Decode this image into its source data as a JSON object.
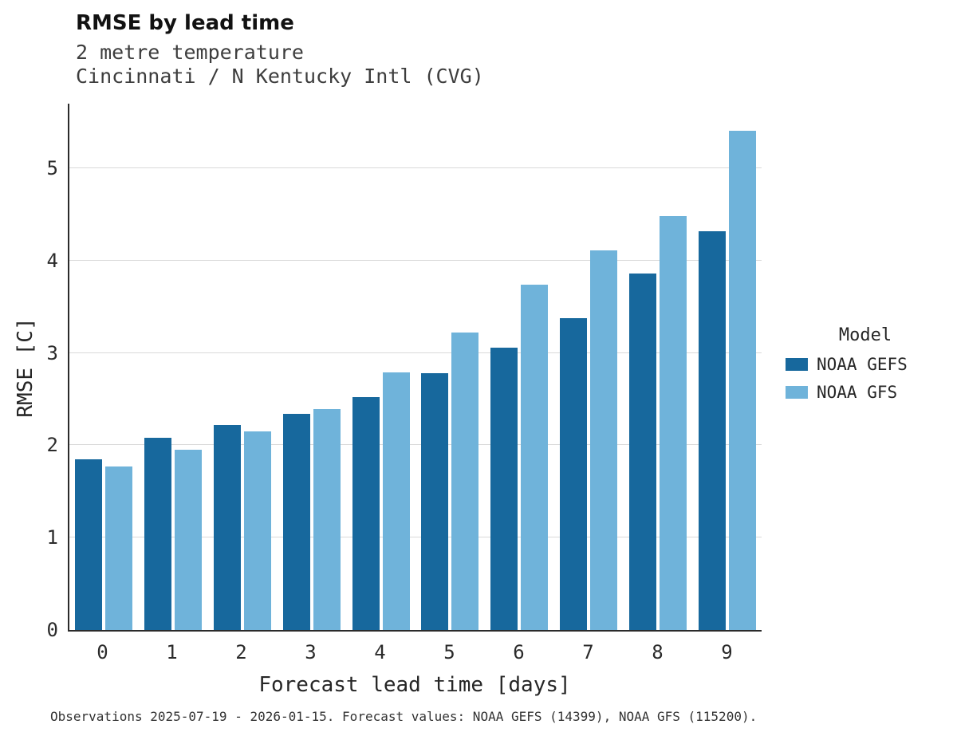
{
  "header": {
    "title": "RMSE by lead time",
    "subtitle_line1": "2 metre temperature",
    "subtitle_line2": "Cincinnati / N Kentucky Intl (CVG)"
  },
  "legend": {
    "title": "Model",
    "entries": [
      {
        "label": "NOAA GEFS",
        "color": "#17689d"
      },
      {
        "label": "NOAA GFS",
        "color": "#6fb3da"
      }
    ]
  },
  "caption": "Observations 2025-07-19 - 2026-01-15. Forecast values: NOAA GEFS (14399), NOAA GFS (115200).",
  "chart_data": {
    "type": "bar",
    "title": "RMSE by lead time",
    "subtitle": "2 metre temperature — Cincinnati / N Kentucky Intl (CVG)",
    "xlabel": "Forecast lead time [days]",
    "ylabel": "RMSE [C]",
    "categories": [
      "0",
      "1",
      "2",
      "3",
      "4",
      "5",
      "6",
      "7",
      "8",
      "9"
    ],
    "series": [
      {
        "name": "NOAA GEFS",
        "color": "#17689d",
        "values": [
          1.85,
          2.08,
          2.22,
          2.34,
          2.52,
          2.78,
          3.06,
          3.38,
          3.86,
          4.32
        ]
      },
      {
        "name": "NOAA GFS",
        "color": "#6fb3da",
        "values": [
          1.77,
          1.95,
          2.15,
          2.39,
          2.79,
          3.22,
          3.74,
          4.11,
          4.48,
          5.41
        ]
      }
    ],
    "ylim": [
      0,
      5.7
    ],
    "yticks": [
      0,
      1,
      2,
      3,
      4,
      5
    ],
    "grid": true,
    "legend_position": "right"
  }
}
